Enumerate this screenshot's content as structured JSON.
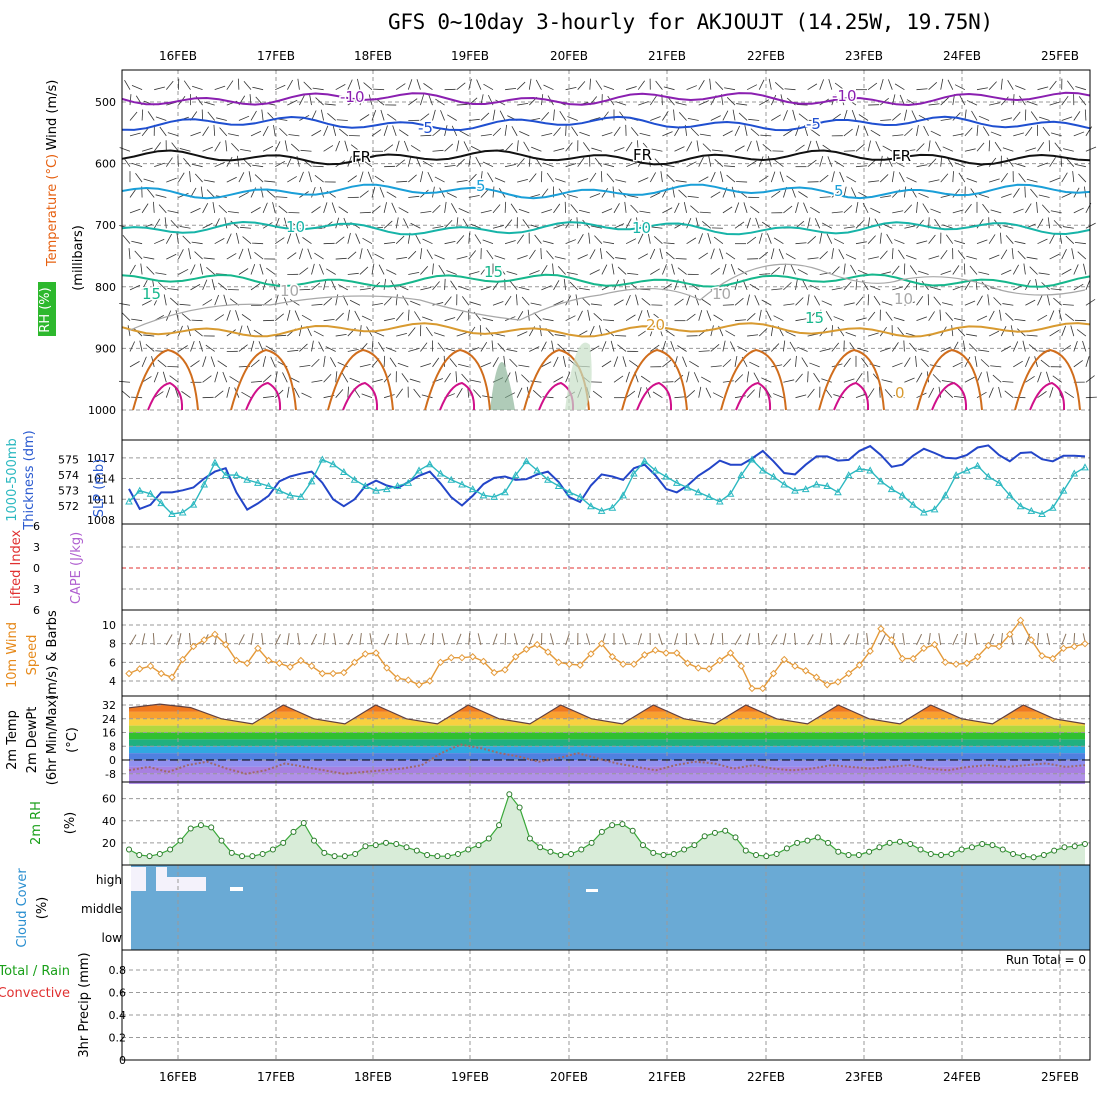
{
  "title": "GFS 0~10day 3-hourly for AKJOUJT (14.25W, 19.75N)",
  "dates": [
    "16FEB",
    "17FEB",
    "18FEB",
    "19FEB",
    "20FEB",
    "21FEB",
    "22FEB",
    "23FEB",
    "24FEB",
    "25FEB"
  ],
  "colors": {
    "purple": "#8a1fb0",
    "blue": "#1f4fd0",
    "cyan": "#1a9fd8",
    "teal": "#17b4a8",
    "green": "#16b78c",
    "gold": "#d89a30",
    "orange": "#d06d1c",
    "magenta": "#d0108a",
    "gray": "#a8a8a8",
    "slp": "#2345c8",
    "thick": "#2bb8c0",
    "wind": "#e49a3a",
    "barb": "#8a7560",
    "cloud": "#6aaad5",
    "rh2m": "#3aa83a",
    "lifted": "#e03030"
  },
  "panel_labels": {
    "upper": {
      "wind": "Wind (m/s)",
      "temp": "Temperature (°C)",
      "rh": "RH (%)",
      "mb": "(millibars)"
    },
    "thick": {
      "a": "1000-500mb",
      "b": "Thickness (dm)",
      "c": "SLP (mb)"
    },
    "cape": {
      "a": "Lifted Index",
      "b": "CAPE (J/kg)"
    },
    "wind10": {
      "a": "10m Wind",
      "b": "Speed",
      "c": "(m/s) & Barbs"
    },
    "temp2m": {
      "a": "2m Temp",
      "b": "2m DewPt",
      "c": "(6hr Min/Max)",
      "d": "(°C)"
    },
    "rh2m": {
      "a": "2m RH",
      "b": "(%)"
    },
    "cloud": {
      "a": "Cloud Cover",
      "b": "(%)"
    },
    "precip": {
      "a": "Total / Rain",
      "b": "Convective",
      "c": "3hr Precip (mm)"
    }
  },
  "upper_air": {
    "yticks": [
      "500",
      "600",
      "700",
      "800",
      "900",
      "1000"
    ],
    "contour_labels": [
      "-10",
      "-10",
      "-5",
      "-5",
      "FR",
      "FR",
      "FR",
      "5",
      "5",
      "10",
      "10",
      "15",
      "15",
      "15",
      "20",
      "10",
      "10",
      "10",
      "0"
    ]
  },
  "run_total": "Run Total = 0",
  "cloud_levels": [
    "high",
    "middle",
    "low"
  ],
  "chart_data": [
    {
      "type": "line",
      "title": "Upper-air temperature contours / wind / RH",
      "x": [
        "16FEB",
        "17FEB",
        "18FEB",
        "19FEB",
        "20FEB",
        "21FEB",
        "22FEB",
        "23FEB",
        "24FEB",
        "25FEB"
      ],
      "ylabel": "millibars",
      "ylim": [
        450,
        1050
      ],
      "isotherms_mb": [
        {
          "name": "-10",
          "mb": 495
        },
        {
          "name": "-5",
          "mb": 535
        },
        {
          "name": "FR",
          "mb": 590
        },
        {
          "name": "5",
          "mb": 645
        },
        {
          "name": "10",
          "mb": 705
        },
        {
          "name": "15",
          "mb": 790
        },
        {
          "name": "20",
          "mb": 870
        }
      ]
    },
    {
      "type": "line",
      "title": "1000-500mb Thickness (dm) & SLP (mb)",
      "ylim_thickness": [
        571,
        576
      ],
      "ylim_slp": [
        1008,
        1020
      ],
      "series": [
        {
          "name": "SLP (mb)",
          "values": [
            1012.5,
            1009.6,
            1010.2,
            1012,
            1012,
            1012.3,
            1012.7,
            1014,
            1015,
            1015.5,
            1012,
            1009.5,
            1010.4,
            1011.5,
            1013.6,
            1014.3,
            1014.7,
            1015,
            1013.4,
            1011,
            1010,
            1011,
            1012.9,
            1013.7,
            1013,
            1012.6,
            1013.5,
            1014.4,
            1015,
            1013.3,
            1011.3,
            1010.1,
            1011.5,
            1013.2,
            1014.1,
            1014.3,
            1013.8,
            1013.9,
            1014.6,
            1015,
            1013.5,
            1011.3,
            1010.6,
            1013,
            1014.6,
            1014.3,
            1013.8,
            1015.5,
            1016,
            1014.5,
            1012.5,
            1012,
            1013,
            1014.4,
            1015.4,
            1016.6,
            1016,
            1016,
            1016.9,
            1018,
            1016.5,
            1014.8,
            1014.6,
            1016,
            1017.2,
            1017.2,
            1016.6,
            1016.7,
            1018,
            1018.7,
            1017.4,
            1015.7,
            1016,
            1017.3,
            1018.3,
            1017.7,
            1017,
            1016.9,
            1017.4,
            1018.5,
            1018.8,
            1017.4,
            1016.5,
            1017.7,
            1017.8,
            1016.8,
            1016.5,
            1017.3,
            1017.3,
            1017.2
          ]
        },
        {
          "name": "1000-500mb Thickness (dm)",
          "values": [
            572.3,
            573.0,
            572.8,
            572.2,
            571.5,
            571.6,
            572.1,
            573.4,
            574.8,
            574.0,
            574.0,
            573.7,
            573.5,
            573.3,
            573.0,
            572.7,
            572.6,
            573.6,
            575.0,
            574.7,
            574.2,
            573.7,
            573.3,
            573.0,
            573.1,
            573.3,
            573.5,
            574.3,
            574.7,
            574.1,
            573.7,
            573.4,
            573.1,
            572.7,
            572.6,
            572.9,
            574.0,
            574.9,
            574.3,
            573.7,
            573.3,
            572.9,
            572.6,
            572.0,
            571.7,
            571.9,
            572.7,
            574.1,
            574.9,
            574.3,
            573.9,
            573.5,
            573.2,
            572.9,
            572.6,
            572.3,
            572.8,
            574.0,
            575.0,
            574.3,
            573.9,
            573.4,
            573.0,
            573.1,
            573.4,
            573.3,
            572.9,
            574.0,
            574.4,
            574.3,
            573.6,
            573.1,
            572.7,
            572.1,
            571.6,
            571.8,
            572.7,
            574.0,
            574.3,
            574.6,
            573.9,
            573.5,
            572.7,
            572.0,
            571.7,
            571.5,
            571.9,
            573.0,
            574.1,
            574.5
          ]
        }
      ]
    },
    {
      "type": "line",
      "title": "Lifted Index / CAPE",
      "ylim": [
        -6,
        6
      ],
      "yticks": [
        "-6",
        "-3",
        "0",
        "3",
        "6"
      ],
      "series": []
    },
    {
      "type": "line",
      "title": "10m Wind Speed (m/s) & Barbs",
      "ylim": [
        2.5,
        11
      ],
      "yticks": [
        "4",
        "6",
        "8",
        "10"
      ],
      "series": [
        {
          "name": "10m Wind Speed",
          "values": [
            4.8,
            5.3,
            5.6,
            4.8,
            4.4,
            6.3,
            7.7,
            8.4,
            9.0,
            7.9,
            6.2,
            5.9,
            7.5,
            6.2,
            5.9,
            5.5,
            6.2,
            5.6,
            4.8,
            4.8,
            4.9,
            6.0,
            6.9,
            7.0,
            5.4,
            4.3,
            4.1,
            3.6,
            4.0,
            6.0,
            6.5,
            6.5,
            6.6,
            6.1,
            4.9,
            5.2,
            6.6,
            7.4,
            7.9,
            7.1,
            6.0,
            5.8,
            5.7,
            6.9,
            8.0,
            6.6,
            5.8,
            5.8,
            6.8,
            7.3,
            7.0,
            7.0,
            5.9,
            5.4,
            5.3,
            6.2,
            7.0,
            5.6,
            3.2,
            3.2,
            4.8,
            6.3,
            5.6,
            5.1,
            4.4,
            3.6,
            3.9,
            4.8,
            5.7,
            7.2,
            9.6,
            8.4,
            6.4,
            6.4,
            7.5,
            7.9,
            6.0,
            5.8,
            5.9,
            6.6,
            7.8,
            7.7,
            9.0,
            10.5,
            8.4,
            6.7,
            6.4,
            7.5,
            7.7,
            8.0
          ]
        }
      ]
    },
    {
      "type": "line",
      "title": "2m Temp / 2m DewPt (°C)",
      "ylim": [
        -14,
        36
      ],
      "yticks": [
        "32",
        "24",
        "16",
        "8",
        "0",
        "-8"
      ],
      "series": [
        {
          "name": "2m Temp",
          "values": [
            30.4,
            32.5,
            30.5,
            24,
            21,
            32,
            24,
            21,
            32,
            24,
            21,
            32,
            24,
            21,
            32,
            24,
            21,
            32,
            24,
            21,
            32,
            24,
            21,
            32,
            24,
            21,
            32,
            24,
            21,
            32,
            24,
            21
          ]
        },
        {
          "name": "2m DewPt",
          "values": [
            -6,
            -4,
            -7,
            -3,
            -1,
            -5,
            -8,
            -6,
            -2,
            -4,
            -6,
            -8,
            -7,
            -6,
            -5,
            -3,
            4,
            9,
            7,
            4,
            2,
            -1,
            1,
            4,
            1,
            -2,
            -4,
            -6,
            -3,
            -1,
            -2,
            -5,
            -3,
            -5,
            -6,
            -5,
            -3,
            -4,
            -5,
            -4,
            -3,
            -5,
            -6,
            -4,
            -3,
            -4,
            -3,
            -2,
            -4,
            -3
          ]
        }
      ]
    },
    {
      "type": "area",
      "title": "2m RH (%)",
      "ylim": [
        0,
        70
      ],
      "yticks": [
        "60",
        "40",
        "20"
      ],
      "series": [
        {
          "name": "2m RH",
          "values": [
            14,
            9,
            8,
            10,
            14,
            22,
            33,
            36,
            34,
            22,
            11,
            8,
            8,
            10,
            14,
            20,
            30,
            38,
            22,
            11,
            8,
            8,
            10,
            17,
            18,
            20,
            19,
            16,
            13,
            9,
            8,
            8,
            10,
            14,
            18,
            24,
            36,
            64,
            52,
            24,
            16,
            12,
            9,
            10,
            14,
            20,
            30,
            36,
            37,
            31,
            18,
            11,
            9,
            10,
            14,
            18,
            26,
            29,
            31,
            25,
            13,
            9,
            8,
            10,
            15,
            20,
            22,
            25,
            20,
            12,
            9,
            9,
            12,
            16,
            20,
            21,
            19,
            14,
            10,
            9,
            10,
            14,
            16,
            19,
            18,
            14,
            10,
            8,
            7,
            9,
            13,
            16,
            17,
            19
          ]
        }
      ]
    },
    {
      "type": "area",
      "title": "Cloud Cover (%)",
      "categories": [
        "high",
        "middle",
        "low"
      ],
      "series": []
    },
    {
      "type": "bar",
      "title": "3hr Precip (mm)",
      "ylim": [
        0,
        1.0
      ],
      "yticks": [
        "0.8",
        "0.6",
        "0.4",
        "0.2",
        "0"
      ],
      "series": [
        {
          "name": "Run Total = 0",
          "values": []
        }
      ]
    }
  ]
}
